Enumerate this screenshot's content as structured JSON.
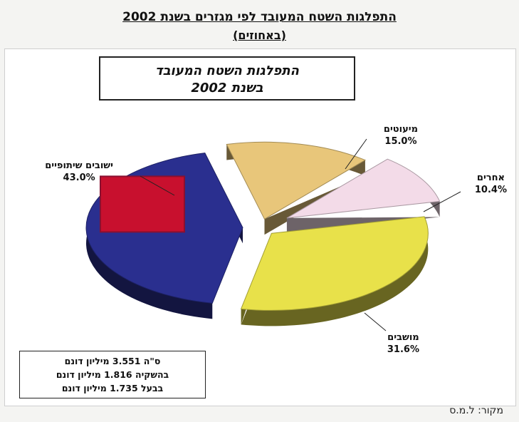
{
  "page": {
    "title": "התפלגות השטח המעובד לפי מגזרים  בשנת 2002",
    "subtitle": "(באחוזים)",
    "source": "מקור: ל.מ.ס"
  },
  "chart_data": {
    "type": "pie",
    "title_lines": [
      "התפלגות השטח  המעובד",
      "בשנת 2002"
    ],
    "slices": [
      {
        "label": "ישובים שיתופיים",
        "value": 43.0,
        "value_label": "43.0%",
        "color": "#2a2f8f",
        "inner_color": "#c8102e"
      },
      {
        "label": "מיעוטים",
        "value": 15.0,
        "value_label": "15.0%",
        "color": "#e8c67a"
      },
      {
        "label": "אחרים",
        "value": 10.4,
        "value_label": "10.4%",
        "color": "#f3dbe8"
      },
      {
        "label": "מושבים",
        "value": 31.6,
        "value_label": "31.6%",
        "color": "#e8e14a"
      }
    ],
    "summary_lines": [
      "ס\"ה 3.551 מיליון דונם",
      "בהשקיה  1.816 מיליון דונם",
      "בבעל 1.735 מיליון דונם"
    ]
  }
}
